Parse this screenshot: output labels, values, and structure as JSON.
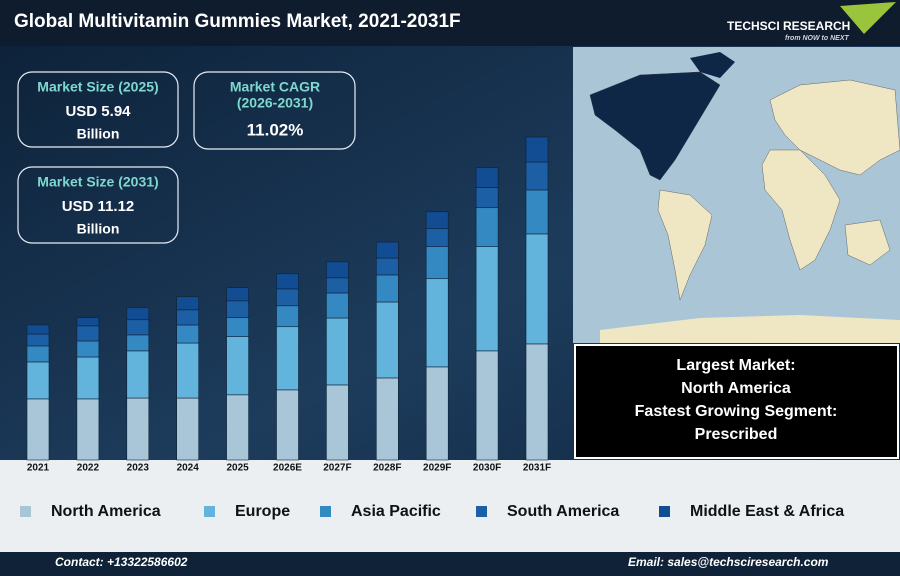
{
  "header": {
    "title": "Global Multivitamin Gummies Market, 2021-2031F",
    "logo": "TECHSCI RESEARCH",
    "tagline": "from NOW to NEXT"
  },
  "stats": [
    {
      "label": "Market Size (2025)",
      "value": "USD 5.94",
      "unit": "Billion"
    },
    {
      "label": "Market CAGR",
      "period": "(2026-2031)",
      "value": "11.02%"
    },
    {
      "label": "Market Size (2031)",
      "value": "USD 11.12",
      "unit": "Billion"
    }
  ],
  "highlights": [
    "Largest Market:",
    "North America",
    "Fastest Growing Segment:",
    "Prescribed"
  ],
  "footer": {
    "contact": "Contact: +13322586602",
    "email": "Email: sales@techsciresearch.com"
  },
  "chart_data": {
    "type": "stacked-bar",
    "categories": [
      "2021",
      "2022",
      "2023",
      "2024",
      "2025",
      "2026E",
      "2027F",
      "2028F",
      "2029F",
      "2030F",
      "2031F"
    ],
    "series": [
      {
        "name": "North America",
        "color": "#a9c6d8",
        "values": [
          2.1,
          2.1,
          2.13,
          2.13,
          2.24,
          2.41,
          2.58,
          2.82,
          3.2,
          3.75,
          3.99
        ]
      },
      {
        "name": "Europe",
        "color": "#62b4dc",
        "values": [
          1.27,
          1.44,
          1.62,
          1.89,
          2.0,
          2.17,
          2.3,
          2.61,
          3.03,
          3.58,
          3.78
        ]
      },
      {
        "name": "Asia Pacific",
        "color": "#3489c2",
        "values": [
          0.55,
          0.55,
          0.55,
          0.62,
          0.65,
          0.72,
          0.86,
          0.93,
          1.1,
          1.34,
          1.51
        ]
      },
      {
        "name": "South America",
        "color": "#1c5fa4",
        "values": [
          0.41,
          0.52,
          0.52,
          0.52,
          0.58,
          0.58,
          0.52,
          0.58,
          0.62,
          0.69,
          0.96
        ]
      },
      {
        "name": "Middle East & Africa",
        "color": "#124c93",
        "values": [
          0.31,
          0.28,
          0.41,
          0.45,
          0.45,
          0.52,
          0.55,
          0.55,
          0.58,
          0.69,
          0.86
        ]
      }
    ]
  }
}
